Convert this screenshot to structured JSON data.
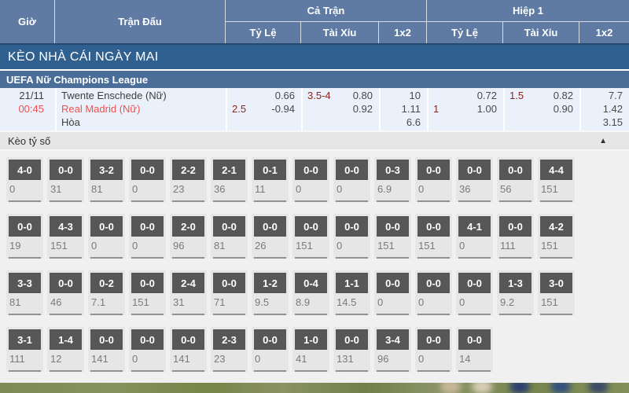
{
  "header": {
    "col_time": "Giờ",
    "col_match": "Trận Đấu",
    "group_full": "Cả Trận",
    "group_half": "Hiệp 1",
    "sub_odds": "Tỷ Lệ",
    "sub_overunder": "Tài Xỉu",
    "sub_1x2": "1x2"
  },
  "banner": {
    "title": "KÈO NHÀ CÁI NGÀY MAI"
  },
  "league": {
    "name": "UEFA Nữ Champions League"
  },
  "match": {
    "date": "21/11",
    "time": "00:45",
    "home": "Twente Enschede (Nữ)",
    "away": "Real Madrid (Nữ)",
    "draw_label": "Hòa",
    "full": {
      "hdp": {
        "odds1": "0.66",
        "handicap": "2.5",
        "odds2": "-0.94"
      },
      "ou": {
        "line": "3.5-4",
        "over": "0.80",
        "under": "0.92"
      },
      "x12": {
        "home": "10",
        "away": "1.11",
        "draw": "6.6"
      }
    },
    "half": {
      "hdp": {
        "odds1": "0.72",
        "handicap": "1",
        "odds2": "1.00"
      },
      "ou": {
        "line": "1.5",
        "over": "0.82",
        "under": "0.90"
      },
      "x12": {
        "home": "7.7",
        "away": "1.42",
        "draw": "3.15"
      }
    }
  },
  "score_section": {
    "title": "Kèo tỷ số",
    "collapse_icon": "▲",
    "rows": [
      [
        {
          "s": "4-0",
          "v": "0"
        },
        {
          "s": "0-0",
          "v": "31"
        },
        {
          "s": "3-2",
          "v": "81"
        },
        {
          "s": "0-0",
          "v": "0"
        },
        {
          "s": "2-2",
          "v": "23"
        },
        {
          "s": "2-1",
          "v": "36"
        },
        {
          "s": "0-1",
          "v": "11"
        },
        {
          "s": "0-0",
          "v": "0"
        },
        {
          "s": "0-0",
          "v": "0"
        },
        {
          "s": "0-3",
          "v": "6.9"
        },
        {
          "s": "0-0",
          "v": "0"
        },
        {
          "s": "0-0",
          "v": "36"
        },
        {
          "s": "0-0",
          "v": "56"
        },
        {
          "s": "4-4",
          "v": "151"
        }
      ],
      [
        {
          "s": "0-0",
          "v": "19"
        },
        {
          "s": "4-3",
          "v": "151"
        },
        {
          "s": "0-0",
          "v": "0"
        },
        {
          "s": "0-0",
          "v": "0"
        },
        {
          "s": "2-0",
          "v": "96"
        },
        {
          "s": "0-0",
          "v": "81"
        },
        {
          "s": "0-0",
          "v": "26"
        },
        {
          "s": "0-0",
          "v": "151"
        },
        {
          "s": "0-0",
          "v": "0"
        },
        {
          "s": "0-0",
          "v": "151"
        },
        {
          "s": "0-0",
          "v": "151"
        },
        {
          "s": "4-1",
          "v": "0"
        },
        {
          "s": "0-0",
          "v": "111"
        },
        {
          "s": "4-2",
          "v": "151"
        }
      ],
      [
        {
          "s": "3-3",
          "v": "81"
        },
        {
          "s": "0-0",
          "v": "46"
        },
        {
          "s": "0-2",
          "v": "7.1"
        },
        {
          "s": "0-0",
          "v": "151"
        },
        {
          "s": "2-4",
          "v": "31"
        },
        {
          "s": "0-0",
          "v": "71"
        },
        {
          "s": "1-2",
          "v": "9.5"
        },
        {
          "s": "0-4",
          "v": "8.9"
        },
        {
          "s": "1-1",
          "v": "14.5"
        },
        {
          "s": "0-0",
          "v": "0"
        },
        {
          "s": "0-0",
          "v": "0"
        },
        {
          "s": "0-0",
          "v": "0"
        },
        {
          "s": "1-3",
          "v": "9.2"
        },
        {
          "s": "3-0",
          "v": "151"
        }
      ],
      [
        {
          "s": "3-1",
          "v": "111"
        },
        {
          "s": "1-4",
          "v": "12"
        },
        {
          "s": "0-0",
          "v": "141"
        },
        {
          "s": "0-0",
          "v": "0"
        },
        {
          "s": "0-0",
          "v": "141"
        },
        {
          "s": "2-3",
          "v": "23"
        },
        {
          "s": "0-0",
          "v": "0"
        },
        {
          "s": "1-0",
          "v": "41"
        },
        {
          "s": "0-0",
          "v": "131"
        },
        {
          "s": "3-4",
          "v": "96"
        },
        {
          "s": "0-0",
          "v": "0"
        },
        {
          "s": "0-0",
          "v": "14"
        }
      ]
    ]
  },
  "colors": {
    "header_bg": "#5f7ba3",
    "banner_bg": "#2f608f",
    "league_bg": "#4b6e98",
    "row_bg": "#eaf1fa",
    "handicap_text": "#8c2222",
    "highlight_red": "#ee5050",
    "score_box": "#575757"
  }
}
